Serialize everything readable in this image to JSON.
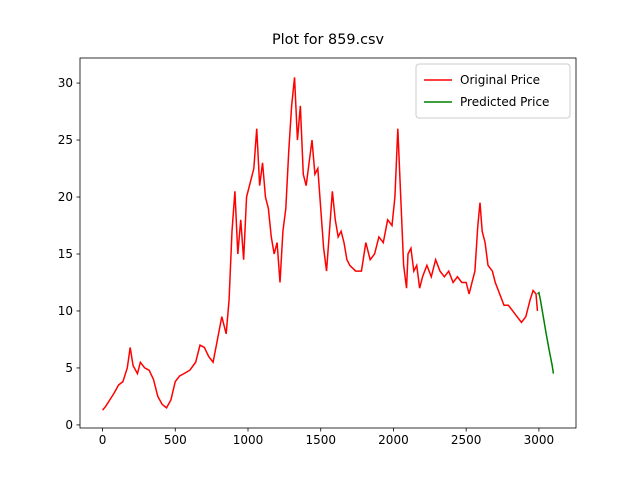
{
  "chart_data": {
    "type": "line",
    "title": "Plot for 859.csv",
    "xlim": [
      -155,
      3255
    ],
    "ylim": [
      -0.27,
      32.2
    ],
    "xticks": [
      0,
      500,
      1000,
      1500,
      2000,
      2500,
      3000
    ],
    "yticks": [
      0,
      5,
      10,
      15,
      20,
      25,
      30
    ],
    "legend": "upper right",
    "series": [
      {
        "name": "Original Price",
        "color": "#ff0000",
        "x": [
          0,
          20,
          50,
          80,
          110,
          140,
          170,
          190,
          210,
          240,
          260,
          290,
          320,
          350,
          380,
          410,
          440,
          470,
          500,
          530,
          560,
          600,
          640,
          670,
          700,
          730,
          760,
          790,
          820,
          850,
          870,
          890,
          910,
          930,
          950,
          970,
          990,
          1010,
          1040,
          1060,
          1080,
          1100,
          1120,
          1140,
          1160,
          1180,
          1200,
          1220,
          1240,
          1260,
          1280,
          1300,
          1320,
          1340,
          1360,
          1380,
          1400,
          1420,
          1440,
          1460,
          1480,
          1500,
          1520,
          1540,
          1560,
          1580,
          1600,
          1620,
          1640,
          1660,
          1680,
          1700,
          1740,
          1780,
          1810,
          1840,
          1870,
          1900,
          1930,
          1960,
          1990,
          2010,
          2030,
          2050,
          2070,
          2090,
          2100,
          2120,
          2140,
          2160,
          2180,
          2200,
          2230,
          2260,
          2290,
          2320,
          2350,
          2380,
          2410,
          2440,
          2470,
          2500,
          2520,
          2540,
          2560,
          2580,
          2595,
          2610,
          2630,
          2650,
          2680,
          2700,
          2730,
          2760,
          2790,
          2820,
          2850,
          2880,
          2910,
          2940,
          2960,
          2980,
          2990
        ],
        "values": [
          1.3,
          1.6,
          2.2,
          2.8,
          3.5,
          3.8,
          5.0,
          6.8,
          5.2,
          4.5,
          5.5,
          5.0,
          4.8,
          4.0,
          2.5,
          1.8,
          1.5,
          2.2,
          3.8,
          4.3,
          4.5,
          4.8,
          5.5,
          7.0,
          6.8,
          6.0,
          5.5,
          7.5,
          9.5,
          8.0,
          11,
          17,
          20.5,
          15,
          18,
          14.5,
          20,
          21,
          22.5,
          26,
          21,
          23,
          20,
          19,
          16.5,
          15,
          16,
          12.5,
          17,
          19,
          24,
          28,
          30.5,
          25,
          28,
          22,
          21,
          23,
          25,
          22,
          22.5,
          19,
          15.5,
          13.5,
          17,
          20.5,
          18,
          16.5,
          17,
          16,
          14.5,
          14,
          13.5,
          13.5,
          16,
          14.5,
          15,
          16.5,
          16,
          18,
          17.5,
          20,
          26,
          20,
          14,
          12,
          15,
          15.5,
          13.5,
          14,
          12,
          13,
          14,
          13,
          14.5,
          13.5,
          13,
          13.5,
          12.5,
          13,
          12.5,
          12.5,
          11.5,
          12.5,
          13.5,
          17.5,
          19.5,
          17,
          16,
          14,
          13.5,
          12.5,
          11.5,
          10.5,
          10.5,
          10,
          9.5,
          9,
          9.5,
          11,
          11.8,
          11.5,
          10
        ]
      },
      {
        "name": "Predicted Price",
        "color": "#008000",
        "x": [
          2990,
          3000,
          3010,
          3030,
          3050,
          3070,
          3090,
          3100
        ],
        "values": [
          11.5,
          11.6,
          11,
          9.5,
          8,
          6.6,
          5.3,
          4.5
        ]
      }
    ]
  }
}
